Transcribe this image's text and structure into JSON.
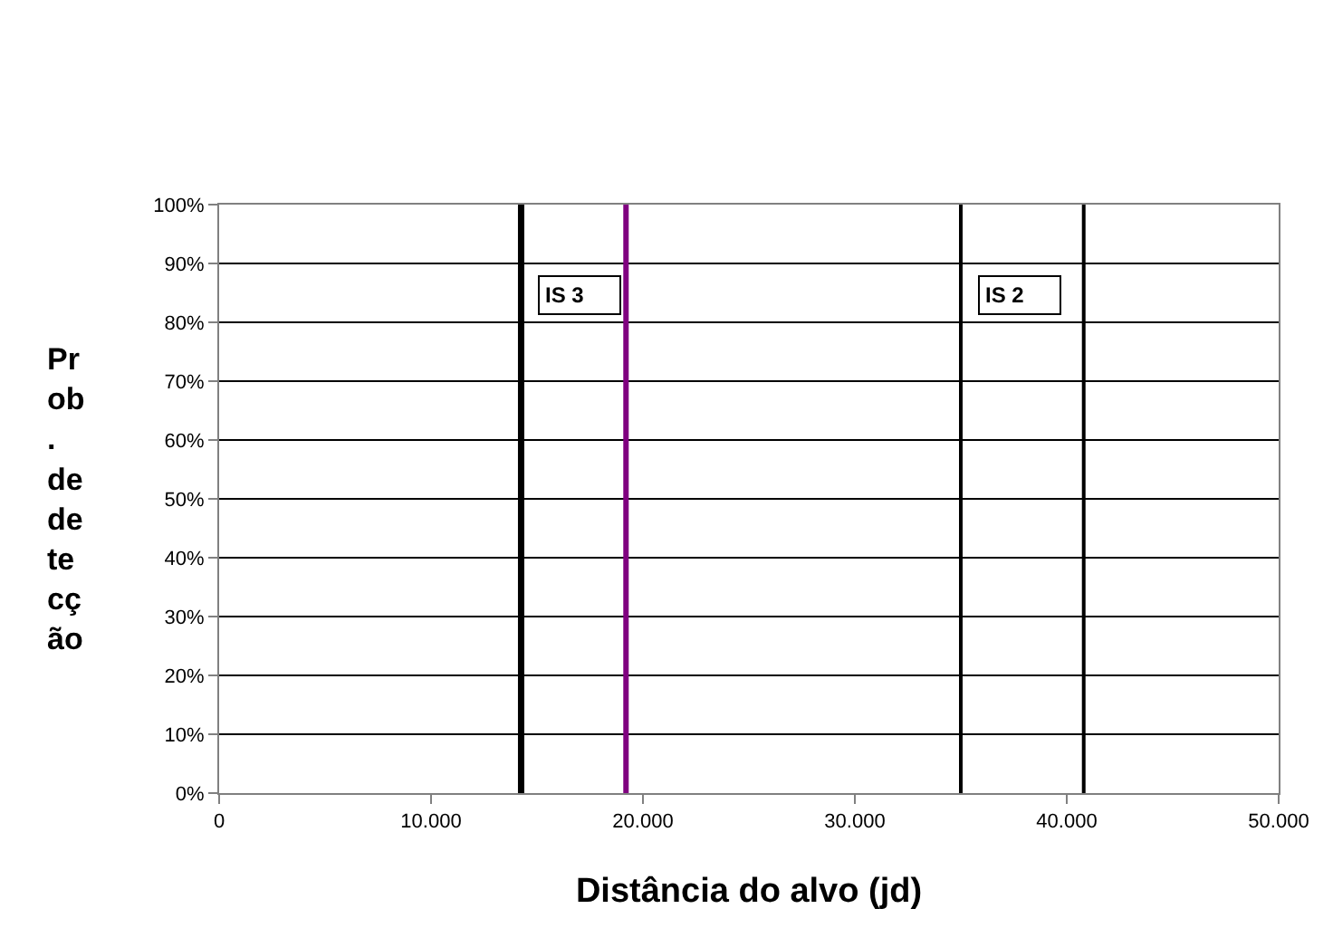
{
  "chart_data": {
    "type": "line",
    "xlabel": "Distância do alvo (jd)",
    "ylabel": "Prob. de detecção",
    "xlim": [
      0,
      50000
    ],
    "xticks": [
      0,
      {
        "value": 10000,
        "label": "10.000"
      },
      {
        "value": 20000,
        "label": "20.000"
      },
      {
        "value": 30000,
        "label": "30.000"
      },
      {
        "value": 40000,
        "label": "40.000"
      },
      {
        "value": 50000,
        "label": "50.000"
      }
    ],
    "ylim": [
      0,
      100
    ],
    "yticks": [
      {
        "value": 0,
        "label": "0%"
      },
      {
        "value": 10,
        "label": "10%"
      },
      {
        "value": 20,
        "label": "20%"
      },
      {
        "value": 30,
        "label": "30%"
      },
      {
        "value": 40,
        "label": "40%"
      },
      {
        "value": 50,
        "label": "50%"
      },
      {
        "value": 60,
        "label": "60%"
      },
      {
        "value": 70,
        "label": "70%"
      },
      {
        "value": 80,
        "label": "80%"
      },
      {
        "value": 90,
        "label": "90%"
      },
      {
        "value": 100,
        "label": "100%"
      }
    ],
    "grid": "y",
    "ref_lines": [
      {
        "axis": "x",
        "value": 14250,
        "color": "#000000"
      },
      {
        "axis": "x",
        "value": 19200,
        "color": "#800080"
      },
      {
        "axis": "x",
        "value": 35000,
        "color": "#000000"
      },
      {
        "axis": "x",
        "value": 40800,
        "color": "#000000"
      }
    ],
    "annotations": [
      "IS 3",
      "IS 2"
    ]
  }
}
